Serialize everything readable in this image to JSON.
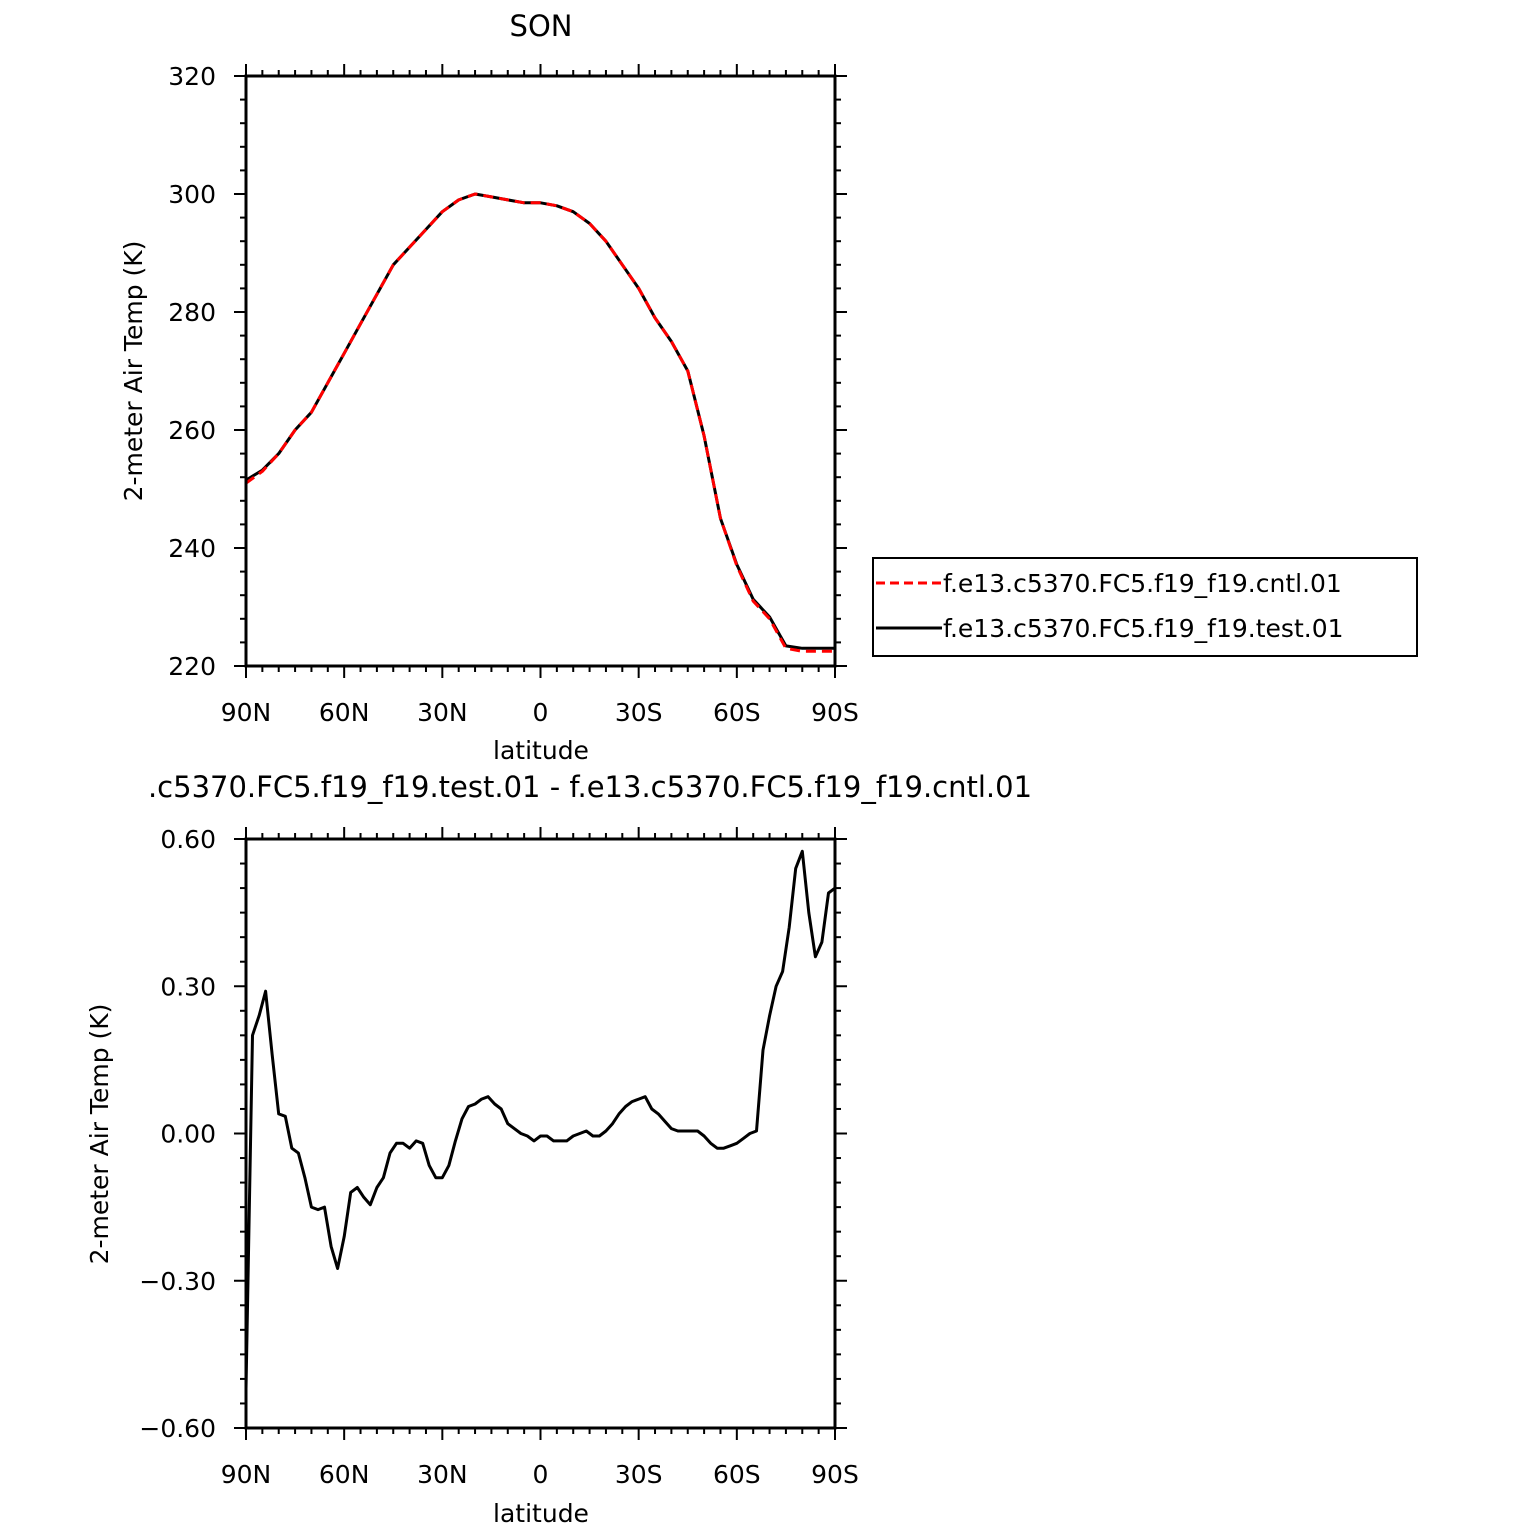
{
  "chart_data": [
    {
      "type": "line",
      "title": "SON",
      "xlabel": "latitude",
      "ylabel": "2-meter Air Temp (K)",
      "xlim": [
        90,
        -90
      ],
      "ylim": [
        220,
        320
      ],
      "x_ticks": [
        90,
        60,
        30,
        0,
        -30,
        -60,
        -90
      ],
      "x_tick_labels": [
        "90N",
        "60N",
        "30N",
        "0",
        "30S",
        "60S",
        "90S"
      ],
      "y_ticks": [
        220,
        240,
        260,
        280,
        300,
        320
      ],
      "y_tick_labels": [
        "220",
        "240",
        "260",
        "280",
        "300",
        "320"
      ],
      "legend_position": "right",
      "series": [
        {
          "name": "f.e13.c5370.FC5.f19_f19.cntl.01",
          "color": "#ff0000",
          "dash": "dashed",
          "x": [
            90,
            85,
            80,
            75,
            70,
            65,
            60,
            55,
            50,
            45,
            40,
            35,
            30,
            25,
            20,
            15,
            10,
            5,
            0,
            -5,
            -10,
            -15,
            -20,
            -25,
            -30,
            -35,
            -40,
            -45,
            -50,
            -55,
            -60,
            -65,
            -70,
            -75,
            -80,
            -85,
            -90
          ],
          "values": [
            251,
            253,
            256,
            260,
            263,
            268,
            273,
            278,
            283,
            288,
            291,
            294,
            297,
            299,
            300,
            299.5,
            299,
            298.5,
            298.5,
            298,
            297,
            295,
            292,
            288,
            284,
            279,
            275,
            270,
            259,
            245,
            237,
            231,
            228,
            223,
            222.5,
            222.5,
            222.5
          ]
        },
        {
          "name": "f.e13.c5370.FC5.f19_f19.test.01",
          "color": "#000000",
          "dash": "solid",
          "x": [
            90,
            85,
            80,
            75,
            70,
            65,
            60,
            55,
            50,
            45,
            40,
            35,
            30,
            25,
            20,
            15,
            10,
            5,
            0,
            -5,
            -10,
            -15,
            -20,
            -25,
            -30,
            -35,
            -40,
            -45,
            -50,
            -55,
            -60,
            -65,
            -70,
            -75,
            -80,
            -85,
            -90
          ],
          "values": [
            251.5,
            253.2,
            256,
            260,
            263,
            268,
            273,
            278,
            283,
            288,
            291,
            294,
            297,
            299,
            300,
            299.5,
            299,
            298.5,
            298.5,
            298,
            297,
            295,
            292,
            288,
            284,
            279,
            275,
            270,
            259,
            245,
            237.2,
            231.3,
            228.3,
            223.4,
            223,
            223,
            223
          ]
        }
      ]
    },
    {
      "type": "line",
      "title": ".c5370.FC5.f19_f19.test.01 - f.e13.c5370.FC5.f19_f19.cntl.01",
      "xlabel": "latitude",
      "ylabel": "2-meter Air Temp (K)",
      "xlim": [
        90,
        -90
      ],
      "ylim": [
        -0.6,
        0.6
      ],
      "x_ticks": [
        90,
        60,
        30,
        0,
        -30,
        -60,
        -90
      ],
      "x_tick_labels": [
        "90N",
        "60N",
        "30N",
        "0",
        "30S",
        "60S",
        "90S"
      ],
      "y_ticks": [
        0.6,
        0.3,
        0.0,
        -0.3,
        -0.6
      ],
      "y_tick_labels": [
        "0.60",
        "0.30",
        "0.00",
        "−0.30",
        "−0.60"
      ],
      "series": [
        {
          "color": "#000000",
          "dash": "solid",
          "x": [
            90,
            88,
            86,
            84,
            82,
            80,
            78,
            76,
            74,
            72,
            70,
            68,
            66,
            64,
            62,
            60,
            58,
            56,
            54,
            52,
            50,
            48,
            46,
            44,
            42,
            40,
            38,
            36,
            34,
            32,
            30,
            28,
            26,
            24,
            22,
            20,
            18,
            16,
            14,
            12,
            10,
            8,
            6,
            4,
            2,
            0,
            -2,
            -4,
            -6,
            -8,
            -10,
            -12,
            -14,
            -16,
            -18,
            -20,
            -22,
            -24,
            -26,
            -28,
            -30,
            -32,
            -34,
            -36,
            -38,
            -40,
            -42,
            -44,
            -46,
            -48,
            -50,
            -52,
            -54,
            -56,
            -58,
            -60,
            -62,
            -64,
            -66,
            -68,
            -70,
            -72,
            -74,
            -76,
            -78,
            -80,
            -82,
            -84,
            -86,
            -88,
            -90
          ],
          "values": [
            -0.52,
            0.2,
            0.24,
            0.29,
            0.16,
            0.04,
            0.035,
            -0.03,
            -0.04,
            -0.09,
            -0.15,
            -0.155,
            -0.15,
            -0.23,
            -0.275,
            -0.21,
            -0.12,
            -0.11,
            -0.13,
            -0.145,
            -0.11,
            -0.09,
            -0.04,
            -0.02,
            -0.02,
            -0.03,
            -0.015,
            -0.02,
            -0.065,
            -0.09,
            -0.09,
            -0.065,
            -0.015,
            0.03,
            0.055,
            0.06,
            0.07,
            0.075,
            0.06,
            0.05,
            0.02,
            0.01,
            0.0,
            -0.005,
            -0.015,
            -0.005,
            -0.005,
            -0.015,
            -0.015,
            -0.015,
            -0.005,
            0.0,
            0.005,
            -0.005,
            -0.005,
            0.005,
            0.02,
            0.04,
            0.055,
            0.065,
            0.07,
            0.075,
            0.05,
            0.04,
            0.025,
            0.01,
            0.005,
            0.005,
            0.005,
            0.005,
            -0.005,
            -0.02,
            -0.03,
            -0.03,
            -0.025,
            -0.02,
            -0.01,
            0.0,
            0.005,
            0.17,
            0.24,
            0.3,
            0.33,
            0.42,
            0.54,
            0.575,
            0.45,
            0.36,
            0.39,
            0.49,
            0.5
          ]
        }
      ]
    }
  ]
}
